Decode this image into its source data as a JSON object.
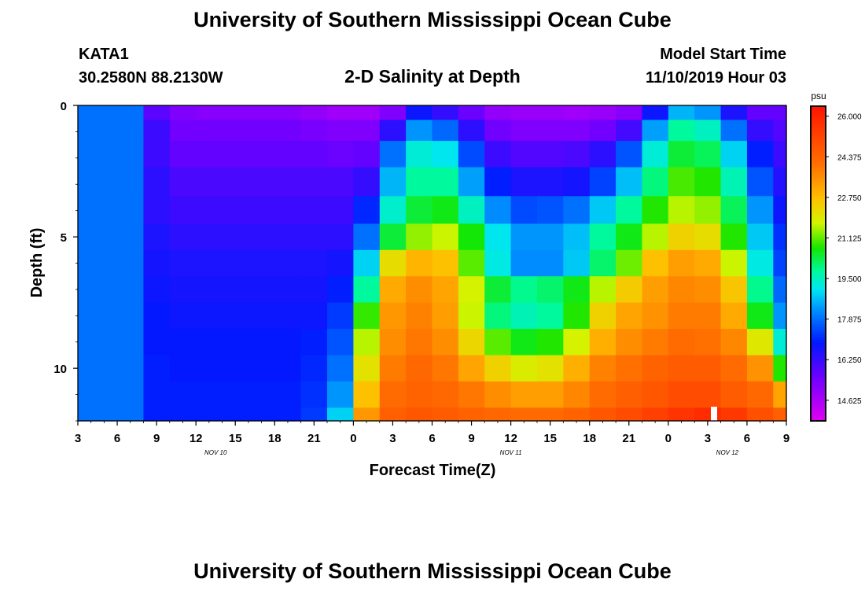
{
  "header": {
    "title": "University of Southern Mississippi Ocean Cube",
    "station_id": "KATA1",
    "coordinates": "30.2580N 88.2130W",
    "subtitle": "2-D Salinity at Depth",
    "model_start_label": "Model Start Time",
    "model_start_value": "11/10/2019 Hour 03"
  },
  "footer": {
    "title": "University of Southern Mississippi Ocean Cube"
  },
  "chart_data": {
    "type": "heatmap",
    "title": "2-D Salinity at Depth",
    "xlabel": "Forecast Time(Z)",
    "ylabel": "Depth (ft)",
    "x_tick_labels": [
      "3",
      "6",
      "9",
      "12",
      "15",
      "18",
      "21",
      "0",
      "3",
      "6",
      "9",
      "12",
      "15",
      "18",
      "21",
      "0",
      "3",
      "6",
      "9"
    ],
    "x_tick_hours": [
      0,
      3,
      6,
      9,
      12,
      15,
      18,
      21,
      24,
      27,
      30,
      33,
      36,
      39,
      42,
      45,
      48,
      51,
      54
    ],
    "date_labels": [
      {
        "text": "NOV 10",
        "hour": 10.5
      },
      {
        "text": "NOV 11",
        "hour": 33
      },
      {
        "text": "NOV 12",
        "hour": 49.5
      }
    ],
    "xlim_hours_since_start": [
      0,
      54
    ],
    "y_ticks": [
      0,
      5,
      10
    ],
    "ylim": [
      0,
      12
    ],
    "y_inverted": true,
    "colorbar": {
      "unit": "psu",
      "min": 13.8,
      "max": 26.4,
      "tick_labels": [
        "26.000",
        "24.375",
        "22.750",
        "21.125",
        "19.500",
        "17.875",
        "16.250",
        "14.625"
      ],
      "tick_values": [
        26.0,
        24.375,
        22.75,
        21.125,
        19.5,
        17.875,
        16.25,
        14.625
      ]
    },
    "depth_levels_ft": [
      0.2,
      0.9,
      1.8,
      2.9,
      4.0,
      5.0,
      6.0,
      7.0,
      8.0,
      9.0,
      10.0,
      11.0,
      12.0
    ],
    "time_hours": [
      0,
      2,
      4,
      6,
      8,
      10,
      12,
      14,
      16,
      18,
      20,
      22,
      24,
      26,
      28,
      30,
      32,
      34,
      36,
      38,
      40,
      42,
      44,
      46,
      48,
      50,
      52,
      54
    ],
    "salinity_psu": [
      [
        17.9,
        17.9,
        17.9,
        15.8,
        15.3,
        15.2,
        15.2,
        15.2,
        15.2,
        15.0,
        14.8,
        14.8,
        15.3,
        16.8,
        16.3,
        15.6,
        15.0,
        14.9,
        14.9,
        14.8,
        14.9,
        15.2,
        16.8,
        18.6,
        18.3,
        16.6,
        15.7,
        15.7
      ],
      [
        17.9,
        17.9,
        17.9,
        16.2,
        15.5,
        15.5,
        15.5,
        15.5,
        15.5,
        15.4,
        15.3,
        15.3,
        16.4,
        18.3,
        17.8,
        16.4,
        15.5,
        15.3,
        15.3,
        15.3,
        15.5,
        16.1,
        18.4,
        19.8,
        19.5,
        17.9,
        16.3,
        15.9
      ],
      [
        17.9,
        17.9,
        17.9,
        16.2,
        15.7,
        15.7,
        15.7,
        15.7,
        15.7,
        15.7,
        15.6,
        15.7,
        17.9,
        19.3,
        19.1,
        17.5,
        16.2,
        15.9,
        15.9,
        16.0,
        16.4,
        17.6,
        19.3,
        20.4,
        20.2,
        18.9,
        17.0,
        16.2
      ],
      [
        17.9,
        17.9,
        17.9,
        16.4,
        16.0,
        16.0,
        16.0,
        16.0,
        16.0,
        16.0,
        16.0,
        16.3,
        18.6,
        19.8,
        19.8,
        18.4,
        17.0,
        16.6,
        16.6,
        16.7,
        17.4,
        18.7,
        20.0,
        21.0,
        20.8,
        19.6,
        17.6,
        16.5
      ],
      [
        17.9,
        17.9,
        17.9,
        16.4,
        16.2,
        16.2,
        16.2,
        16.2,
        16.2,
        16.2,
        16.2,
        17.1,
        19.4,
        20.4,
        20.6,
        19.5,
        18.2,
        17.5,
        17.6,
        17.9,
        18.8,
        19.8,
        20.8,
        21.6,
        21.4,
        20.2,
        18.3,
        16.8
      ],
      [
        17.9,
        17.9,
        17.9,
        16.6,
        16.4,
        16.4,
        16.4,
        16.4,
        16.4,
        16.4,
        16.4,
        17.9,
        20.4,
        21.4,
        21.7,
        20.7,
        19.1,
        18.3,
        18.3,
        18.7,
        19.8,
        20.6,
        21.6,
        22.4,
        22.2,
        20.8,
        18.8,
        17.2
      ],
      [
        17.9,
        17.9,
        17.9,
        16.7,
        16.6,
        16.6,
        16.6,
        16.6,
        16.6,
        16.6,
        16.7,
        18.9,
        22.2,
        22.9,
        22.7,
        21.1,
        19.2,
        18.2,
        18.2,
        18.8,
        20.1,
        21.2,
        22.7,
        23.3,
        23.1,
        21.7,
        19.2,
        17.4
      ],
      [
        17.9,
        17.9,
        17.9,
        16.8,
        16.7,
        16.7,
        16.7,
        16.7,
        16.7,
        16.7,
        17.0,
        19.8,
        23.1,
        23.6,
        23.2,
        21.8,
        20.4,
        19.9,
        20.1,
        20.6,
        21.6,
        22.5,
        23.3,
        23.7,
        23.6,
        22.6,
        19.9,
        17.8
      ],
      [
        17.9,
        17.9,
        17.9,
        16.9,
        16.8,
        16.8,
        16.8,
        16.8,
        16.8,
        16.8,
        17.3,
        20.9,
        23.4,
        23.8,
        23.3,
        21.7,
        20.0,
        19.6,
        19.8,
        20.8,
        22.4,
        23.2,
        23.5,
        23.9,
        23.9,
        23.1,
        20.6,
        18.3
      ],
      [
        17.9,
        17.9,
        17.9,
        16.9,
        16.9,
        16.9,
        16.9,
        16.9,
        16.9,
        17.0,
        17.6,
        21.6,
        23.6,
        24.0,
        23.6,
        22.3,
        21.1,
        20.6,
        20.8,
        21.8,
        23.0,
        23.6,
        23.9,
        24.2,
        24.1,
        23.7,
        22.0,
        19.3
      ],
      [
        17.9,
        17.9,
        17.9,
        17.0,
        16.9,
        16.9,
        16.9,
        16.9,
        16.9,
        17.1,
        17.9,
        22.1,
        23.9,
        24.3,
        24.0,
        23.2,
        22.4,
        21.9,
        22.1,
        23.0,
        23.8,
        24.1,
        24.4,
        24.6,
        24.6,
        24.2,
        23.5,
        20.8
      ],
      [
        17.9,
        17.9,
        17.9,
        17.0,
        17.0,
        17.0,
        17.0,
        17.0,
        17.0,
        17.2,
        18.3,
        22.7,
        24.2,
        24.4,
        24.3,
        24.0,
        23.6,
        23.3,
        23.3,
        23.7,
        24.2,
        24.5,
        24.7,
        25.0,
        25.0,
        24.6,
        24.3,
        23.2
      ],
      [
        17.9,
        17.9,
        17.9,
        17.0,
        17.0,
        17.0,
        17.0,
        17.0,
        17.0,
        17.3,
        18.9,
        23.4,
        24.5,
        24.7,
        24.6,
        24.4,
        24.3,
        24.2,
        24.2,
        24.4,
        24.7,
        25.0,
        25.3,
        25.6,
        25.8,
        25.5,
        24.9,
        24.5
      ]
    ]
  }
}
